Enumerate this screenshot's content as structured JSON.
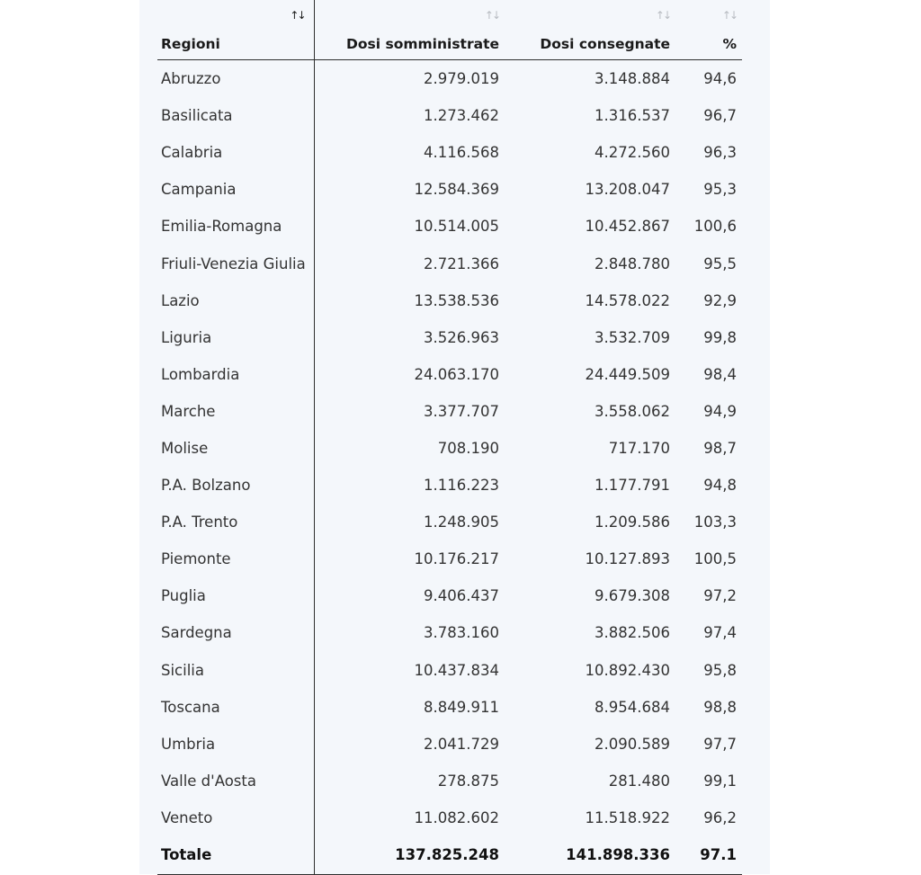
{
  "table": {
    "headers": {
      "region": "Regioni",
      "administered": "Dosi somministrate",
      "delivered": "Dosi consegnate",
      "percent": "%"
    },
    "sort_icon": "↑↓",
    "rows": [
      {
        "region": "Abruzzo",
        "administered": "2.979.019",
        "delivered": "3.148.884",
        "percent": "94,6"
      },
      {
        "region": "Basilicata",
        "administered": "1.273.462",
        "delivered": "1.316.537",
        "percent": "96,7"
      },
      {
        "region": "Calabria",
        "administered": "4.116.568",
        "delivered": "4.272.560",
        "percent": "96,3"
      },
      {
        "region": "Campania",
        "administered": "12.584.369",
        "delivered": "13.208.047",
        "percent": "95,3"
      },
      {
        "region": "Emilia-Romagna",
        "administered": "10.514.005",
        "delivered": "10.452.867",
        "percent": "100,6"
      },
      {
        "region": "Friuli-Venezia Giulia",
        "administered": "2.721.366",
        "delivered": "2.848.780",
        "percent": "95,5"
      },
      {
        "region": "Lazio",
        "administered": "13.538.536",
        "delivered": "14.578.022",
        "percent": "92,9"
      },
      {
        "region": "Liguria",
        "administered": "3.526.963",
        "delivered": "3.532.709",
        "percent": "99,8"
      },
      {
        "region": "Lombardia",
        "administered": "24.063.170",
        "delivered": "24.449.509",
        "percent": "98,4"
      },
      {
        "region": "Marche",
        "administered": "3.377.707",
        "delivered": "3.558.062",
        "percent": "94,9"
      },
      {
        "region": "Molise",
        "administered": "708.190",
        "delivered": "717.170",
        "percent": "98,7"
      },
      {
        "region": "P.A. Bolzano",
        "administered": "1.116.223",
        "delivered": "1.177.791",
        "percent": "94,8"
      },
      {
        "region": "P.A. Trento",
        "administered": "1.248.905",
        "delivered": "1.209.586",
        "percent": "103,3"
      },
      {
        "region": "Piemonte",
        "administered": "10.176.217",
        "delivered": "10.127.893",
        "percent": "100,5"
      },
      {
        "region": "Puglia",
        "administered": "9.406.437",
        "delivered": "9.679.308",
        "percent": "97,2"
      },
      {
        "region": "Sardegna",
        "administered": "3.783.160",
        "delivered": "3.882.506",
        "percent": "97,4"
      },
      {
        "region": "Sicilia",
        "administered": "10.437.834",
        "delivered": "10.892.430",
        "percent": "95,8"
      },
      {
        "region": "Toscana",
        "administered": "8.849.911",
        "delivered": "8.954.684",
        "percent": "98,8"
      },
      {
        "region": "Umbria",
        "administered": "2.041.729",
        "delivered": "2.090.589",
        "percent": "97,7"
      },
      {
        "region": "Valle d'Aosta",
        "administered": "278.875",
        "delivered": "281.480",
        "percent": "99,1"
      },
      {
        "region": "Veneto",
        "administered": "11.082.602",
        "delivered": "11.518.922",
        "percent": "96,2"
      }
    ],
    "total": {
      "region": "Totale",
      "administered": "137.825.248",
      "delivered": "141.898.336",
      "percent": "97.1"
    }
  }
}
